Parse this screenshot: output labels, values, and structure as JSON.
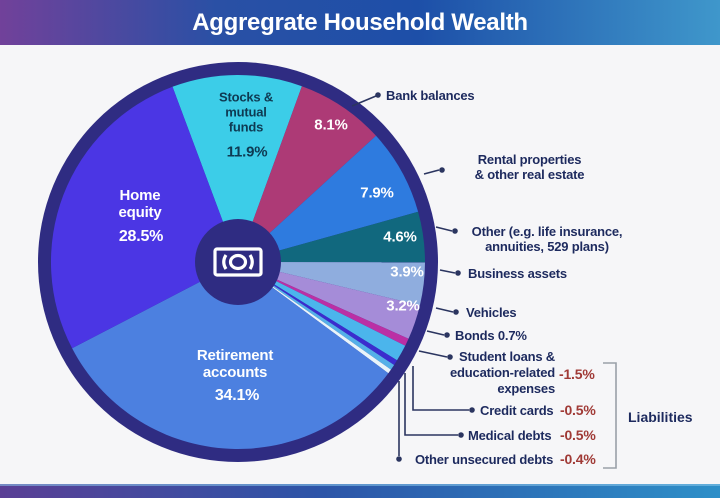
{
  "header": {
    "title": "Aggregrate Household Wealth"
  },
  "chart_data": {
    "type": "pie",
    "title": "Aggregrate Household Wealth",
    "unit": "%",
    "start_angle_deg": -20.5,
    "legend_position": "right-callouts",
    "slices": [
      {
        "name": "Stocks & mutual funds",
        "value": 11.9,
        "label": "11.9%",
        "color": "#3ccde8"
      },
      {
        "name": "Bank balances",
        "value": 8.1,
        "label": "8.1%",
        "color": "#ad3a76"
      },
      {
        "name": "Rental properties & other real estate",
        "value": 7.9,
        "label": "7.9%",
        "color": "#2e7bdf"
      },
      {
        "name": "Other (e.g. life insurance, annuities, 529 plans)",
        "value": 4.6,
        "label": "4.6%",
        "color": "#11687e"
      },
      {
        "name": "Business assets",
        "value": 3.9,
        "label": "3.9%",
        "color": "#8fadde"
      },
      {
        "name": "Vehicles",
        "value": 3.2,
        "label": "3.2%",
        "color": "#a58cd8"
      },
      {
        "name": "Bonds",
        "value": 0.7,
        "label": "0.7%",
        "color": "#bb2fa5"
      },
      {
        "name": "Student loans & education-related expenses",
        "value": -1.5,
        "label": "-1.5%",
        "color": "#4bb5ec"
      },
      {
        "name": "Credit cards",
        "value": -0.5,
        "label": "-0.5%",
        "color": "#3b2dce"
      },
      {
        "name": "Medical debts",
        "value": -0.5,
        "label": "-0.5%",
        "color": "#55b0e8"
      },
      {
        "name": "Other unsecured debts",
        "value": -0.4,
        "label": "-0.4%",
        "color": "#e9f4fa"
      },
      {
        "name": "Retirement accounts",
        "value": 34.1,
        "label": "34.1%",
        "color": "#4c80e0"
      },
      {
        "name": "Home equity",
        "value": 28.5,
        "label": "28.5%",
        "color": "#4b36e4"
      }
    ]
  },
  "pie_text": {
    "home_line1": "Home",
    "home_line2": "equity",
    "stocks_line1": "Stocks &",
    "stocks_line2": "mutual",
    "stocks_line3": "funds",
    "retirement_line1": "Retirement",
    "retirement_line2": "accounts"
  },
  "callouts": {
    "bank": "Bank balances",
    "rental_line1": "Rental properties",
    "rental_line2": "& other real estate",
    "other_line1": "Other (e.g. life insurance,",
    "other_line2": "annuities, 529 plans)",
    "business": "Business assets",
    "vehicles": "Vehicles",
    "bonds": "Bonds",
    "bonds_pct": "0.7%",
    "student_line1": "Student loans &",
    "student_line2": "education-related",
    "student_line3": "expenses",
    "student_pct": "-1.5%",
    "credit": "Credit cards",
    "credit_pct": "-0.5%",
    "medical": "Medical debts",
    "medical_pct": "-0.5%",
    "unsecured": "Other unsecured debts",
    "unsecured_pct": "-0.4%",
    "liabilities": "Liabilities"
  },
  "colors": {
    "header_gradient_left": "#71419a",
    "header_gradient_mid": "#1d4fa8",
    "header_gradient_right": "#3f97cb",
    "ring": "#2f2c82",
    "background": "#f6f6f8",
    "callout_text": "#1d2a5e",
    "negative_text": "#a03a36",
    "stocks_text": "#0e3a52",
    "bracket": "#9aa0a8",
    "leader_line": "#2b3560"
  }
}
